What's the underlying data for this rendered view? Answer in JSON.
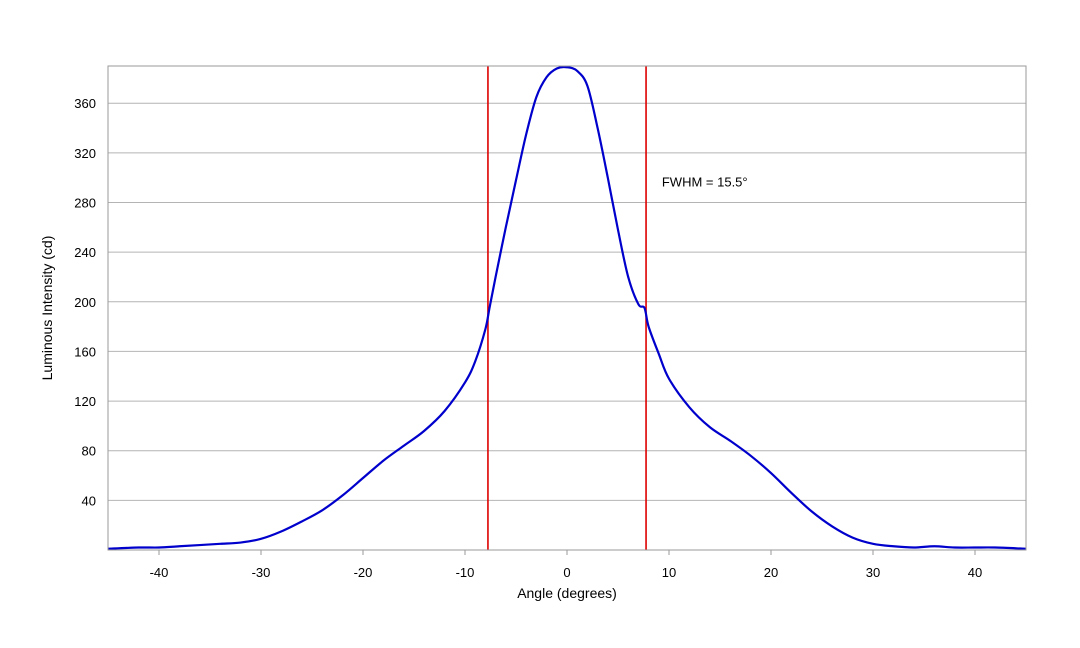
{
  "chart_data": {
    "type": "line",
    "title": "",
    "xlabel": "Angle (degrees)",
    "ylabel": "Luminous Intensity (cd)",
    "xlim": [
      -45,
      45
    ],
    "ylim": [
      0,
      390
    ],
    "xticks": [
      -40,
      -30,
      -20,
      -10,
      0,
      10,
      20,
      30,
      40
    ],
    "yticks": [
      40,
      80,
      120,
      160,
      200,
      240,
      280,
      320,
      360
    ],
    "grid": "horizontal",
    "legend": "none",
    "series": [
      {
        "color": "#0000cc",
        "x": [
          -45,
          -42,
          -40,
          -38,
          -36,
          -34,
          -32,
          -30,
          -28,
          -26,
          -24,
          -22,
          -20,
          -18,
          -16,
          -14,
          -12,
          -10,
          -9,
          -8,
          -7.6,
          -7,
          -6,
          -5,
          -4,
          -3,
          -2,
          -1,
          0,
          1,
          2,
          3,
          4,
          5,
          6,
          7,
          7.6,
          8,
          9,
          10,
          12,
          14,
          16,
          18,
          20,
          22,
          24,
          26,
          28,
          30,
          32,
          34,
          36,
          38,
          40,
          42,
          45
        ],
        "y": [
          1,
          2,
          2,
          3,
          4,
          5,
          6,
          9,
          15,
          23,
          32,
          44,
          58,
          72,
          84,
          96,
          112,
          135,
          152,
          178,
          195,
          220,
          260,
          298,
          335,
          365,
          381,
          388,
          389,
          386,
          374,
          340,
          300,
          258,
          220,
          198,
          195,
          180,
          158,
          138,
          115,
          99,
          88,
          76,
          62,
          46,
          31,
          19,
          10,
          5,
          3,
          2,
          3,
          2,
          2,
          2,
          1
        ]
      }
    ],
    "markers": [
      {
        "x": -7.75,
        "color": "#dd0000"
      },
      {
        "x": 7.75,
        "color": "#dd0000"
      }
    ],
    "annotations": [
      {
        "text": "FWHM = 15.5°",
        "x": 9.3,
        "y": 293
      }
    ]
  }
}
